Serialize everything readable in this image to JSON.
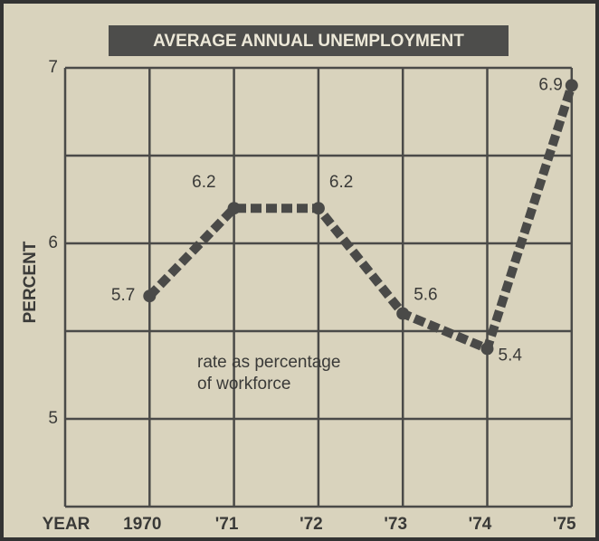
{
  "chart_data": {
    "type": "line",
    "title": "AVERAGE ANNUAL UNEMPLOYMENT",
    "xlabel": "YEAR",
    "ylabel": "PERCENT",
    "annotation": [
      "rate as percentage",
      "of workforce"
    ],
    "categories": [
      "1970",
      "'71",
      "'72",
      "'73",
      "'74",
      "'75"
    ],
    "values": [
      5.7,
      6.2,
      6.2,
      5.6,
      5.4,
      6.9
    ],
    "color": "#4a4a48",
    "ylim": [
      4.5,
      7
    ],
    "yticks": [
      5,
      6,
      7
    ],
    "ygrid_minor": [
      5.5,
      6.5
    ],
    "grid": true
  }
}
